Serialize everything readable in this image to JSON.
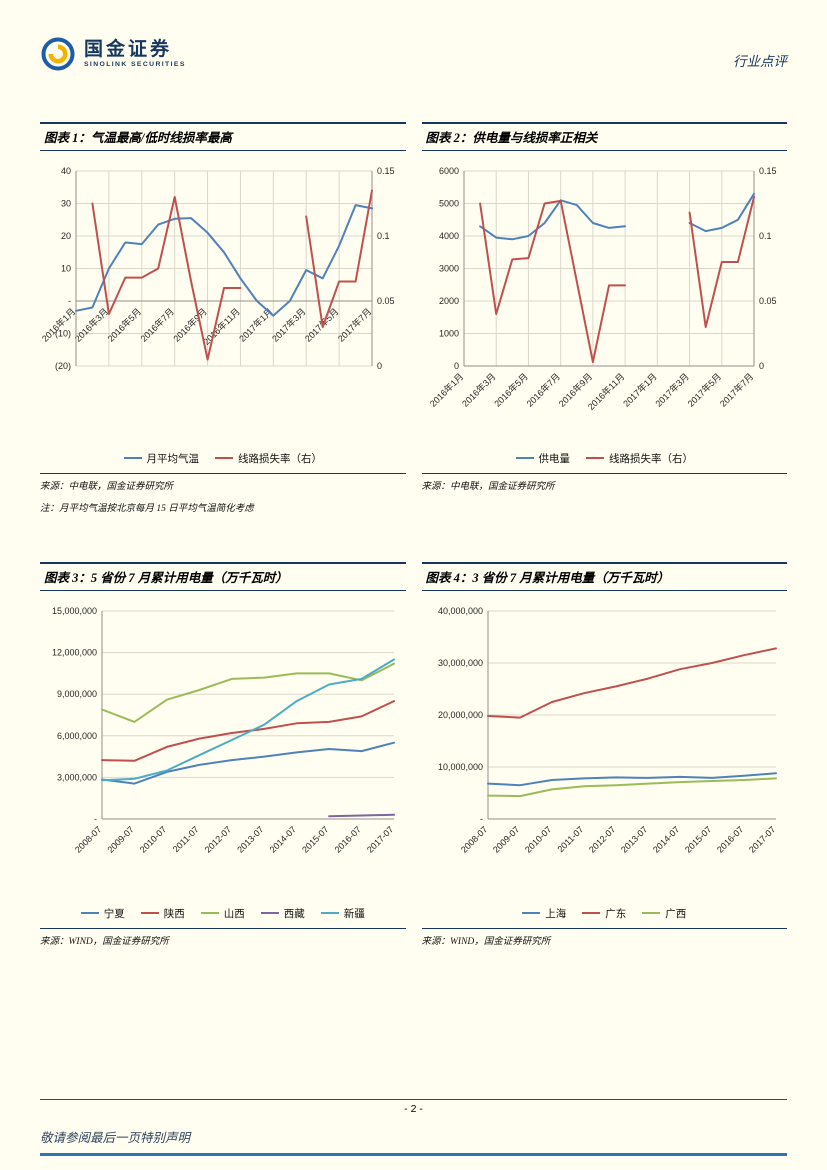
{
  "page": {
    "header": {
      "brand_name": "国金证券",
      "brand_subtitle": "SINOLINK SECURITIES",
      "doc_type": "行业点评",
      "brand_color": "#17375E",
      "accent_yellow": "#F3B300"
    },
    "footer": {
      "page_number": "- 2 -",
      "disclaimer": "敬请参阅最后一页特别声明"
    },
    "background_color": "#FFFEF0"
  },
  "colors": {
    "series_blue": "#4F81BD",
    "series_red": "#C0504D",
    "series_green": "#9BBB59",
    "series_purple": "#8064A2",
    "series_cyan": "#4BACC6",
    "rule_navy": "#17375E",
    "bottom_rule_blue": "#2E74B5"
  },
  "chart_data": [
    {
      "type": "line",
      "title": "图表 1：气温最高/低时线损率最高",
      "source": "来源：中电联，国金证券研究所",
      "note": "注：月平均气温按北京每月 15 日平均气温简化考虑",
      "legend_position": "bottom",
      "grid": "both",
      "x": [
        "2016年1月",
        "2016年2月",
        "2016年3月",
        "2016年4月",
        "2016年5月",
        "2016年6月",
        "2016年7月",
        "2016年8月",
        "2016年9月",
        "2016年10月",
        "2016年11月",
        "2016年12月",
        "2017年1月",
        "2017年2月",
        "2017年3月",
        "2017年4月",
        "2017年5月",
        "2017年6月",
        "2017年7月"
      ],
      "x_ticks": [
        "2016年1月",
        "2016年3月",
        "2016年5月",
        "2016年7月",
        "2016年9月",
        "2016年11月",
        "2017年1月",
        "2017年3月",
        "2017年5月",
        "2017年7月"
      ],
      "left_axis": {
        "min": -20,
        "max": 40,
        "tick_labels": [
          "40",
          "30",
          "20",
          "10",
          "-",
          "(10)",
          "(20)"
        ]
      },
      "right_axis": {
        "min": 0,
        "max": 0.15,
        "tick_labels": [
          "0.15",
          "0.1",
          "0.05",
          "0"
        ]
      },
      "series": [
        {
          "name": "月平均气温",
          "axis": "left",
          "color": "#4F81BD",
          "values": [
            -3,
            -2,
            10,
            18,
            17.5,
            23.5,
            25.3,
            25.5,
            21,
            15,
            7,
            0,
            -4.5,
            0,
            9.5,
            7,
            17,
            29.5,
            28.5
          ]
        },
        {
          "name": "线路损失率（右）",
          "axis": "right",
          "color": "#C0504D",
          "values": [
            null,
            0.125,
            0.04,
            0.068,
            0.068,
            0.075,
            0.13,
            0.065,
            0.005,
            0.06,
            0.06,
            null,
            null,
            null,
            0.115,
            0.03,
            0.065,
            0.065,
            0.135
          ]
        }
      ]
    },
    {
      "type": "line",
      "title": "图表 2：供电量与线损率正相关",
      "source": "来源：中电联，国金证券研究所",
      "legend_position": "bottom",
      "grid": "both",
      "x": [
        "2016年1月",
        "2016年2月",
        "2016年3月",
        "2016年4月",
        "2016年5月",
        "2016年6月",
        "2016年7月",
        "2016年8月",
        "2016年9月",
        "2016年10月",
        "2016年11月",
        "2016年12月",
        "2017年1月",
        "2017年2月",
        "2017年3月",
        "2017年4月",
        "2017年5月",
        "2017年6月",
        "2017年7月"
      ],
      "x_ticks": [
        "2016年1月",
        "2016年3月",
        "2016年5月",
        "2016年7月",
        "2016年9月",
        "2016年11月",
        "2017年1月",
        "2017年3月",
        "2017年5月",
        "2017年7月"
      ],
      "left_axis": {
        "min": 0,
        "max": 6000,
        "tick_labels": [
          "6000",
          "5000",
          "4000",
          "3000",
          "2000",
          "1000",
          "0"
        ]
      },
      "right_axis": {
        "min": 0,
        "max": 0.15,
        "tick_labels": [
          "0.15",
          "0.1",
          "0.05",
          "0"
        ]
      },
      "series": [
        {
          "name": "供电量",
          "axis": "left",
          "color": "#4F81BD",
          "values": [
            null,
            4300,
            3950,
            3900,
            4000,
            4400,
            5100,
            4950,
            4400,
            4250,
            4300,
            null,
            null,
            null,
            4400,
            4150,
            4250,
            4500,
            5300
          ]
        },
        {
          "name": "线路损失率（右）",
          "axis": "right",
          "color": "#C0504D",
          "values": [
            null,
            0.125,
            0.04,
            0.082,
            0.083,
            0.125,
            0.127,
            0.065,
            0.003,
            0.062,
            0.062,
            null,
            null,
            null,
            0.118,
            0.03,
            0.08,
            0.08,
            0.13
          ]
        }
      ]
    },
    {
      "type": "line",
      "title": "图表 3：5 省份 7 月累计用电量（万千瓦时）",
      "source": "来源：WIND，国金证券研究所",
      "legend_position": "bottom",
      "grid": "h",
      "x": [
        "2008-07",
        "2009-07",
        "2010-07",
        "2011-07",
        "2012-07",
        "2013-07",
        "2014-07",
        "2015-07",
        "2016-07",
        "2017-07"
      ],
      "left_axis": {
        "min": 0,
        "max": 15000000,
        "tick_labels": [
          "15,000,000",
          "12,000,000",
          "9,000,000",
          "6,000,000",
          "3,000,000",
          "-"
        ]
      },
      "series": [
        {
          "name": "宁夏",
          "axis": "left",
          "color": "#4F81BD",
          "values": [
            2850000,
            2550000,
            3400000,
            3900000,
            4250000,
            4500000,
            4800000,
            5050000,
            4900000,
            5500000
          ]
        },
        {
          "name": "陕西",
          "axis": "left",
          "color": "#C0504D",
          "values": [
            4250000,
            4200000,
            5200000,
            5800000,
            6200000,
            6500000,
            6900000,
            7000000,
            7400000,
            8500000
          ]
        },
        {
          "name": "山西",
          "axis": "left",
          "color": "#9BBB59",
          "values": [
            7900000,
            7000000,
            8600000,
            9300000,
            10100000,
            10200000,
            10500000,
            10500000,
            10000000,
            11200000
          ]
        },
        {
          "name": "西藏",
          "axis": "left",
          "color": "#8064A2",
          "values": [
            null,
            null,
            null,
            null,
            null,
            null,
            null,
            200000,
            250000,
            300000
          ]
        },
        {
          "name": "新疆",
          "axis": "left",
          "color": "#4BACC6",
          "values": [
            2800000,
            2900000,
            3500000,
            4600000,
            5700000,
            6800000,
            8500000,
            9700000,
            10100000,
            11500000
          ]
        }
      ]
    },
    {
      "type": "line",
      "title": "图表 4：3 省份 7 月累计用电量（万千瓦时）",
      "source": "来源：WIND，国金证券研究所",
      "legend_position": "bottom",
      "grid": "h",
      "x": [
        "2008-07",
        "2009-07",
        "2010-07",
        "2011-07",
        "2012-07",
        "2013-07",
        "2014-07",
        "2015-07",
        "2016-07",
        "2017-07"
      ],
      "left_axis": {
        "min": 0,
        "max": 40000000,
        "tick_labels": [
          "40,000,000",
          "30,000,000",
          "20,000,000",
          "10,000,000",
          "-"
        ]
      },
      "series": [
        {
          "name": "上海",
          "axis": "left",
          "color": "#4F81BD",
          "values": [
            6800000,
            6500000,
            7500000,
            7800000,
            8000000,
            7900000,
            8100000,
            7900000,
            8300000,
            8800000
          ]
        },
        {
          "name": "广东",
          "axis": "left",
          "color": "#C0504D",
          "values": [
            19800000,
            19500000,
            22500000,
            24200000,
            25500000,
            27000000,
            28800000,
            30000000,
            31500000,
            32800000
          ]
        },
        {
          "name": "广西",
          "axis": "left",
          "color": "#9BBB59",
          "values": [
            4500000,
            4400000,
            5700000,
            6300000,
            6500000,
            6800000,
            7100000,
            7300000,
            7500000,
            7800000
          ]
        }
      ]
    }
  ]
}
